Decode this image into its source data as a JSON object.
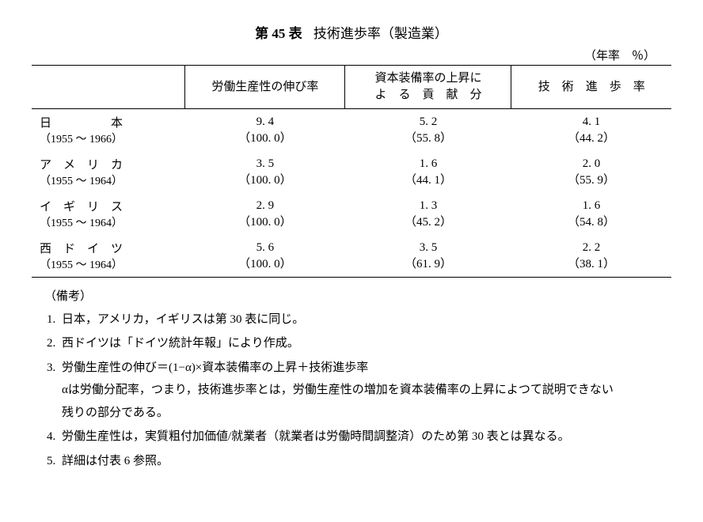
{
  "title": {
    "number": "第 45 表",
    "text": "技術進歩率（製造業）"
  },
  "unit": "（年率　％）",
  "headers": {
    "col1": "",
    "col2": "労働生産性の伸び率",
    "col3_l1": "資本装備率の上昇に",
    "col3_l2": "よ　る　貢　献　分",
    "col4": "技　術　進　歩　率"
  },
  "rows": [
    {
      "country": "日　　　　　本",
      "years": "（1955 〜 1966）",
      "v1": "9. 4",
      "p1": "（100. 0）",
      "v2": "5. 2",
      "p2": "（55. 8）",
      "v3": "4. 1",
      "p3": "（44. 2）"
    },
    {
      "country": "ア　メ　リ　カ",
      "years": "（1955 〜 1964）",
      "v1": "3. 5",
      "p1": "（100. 0）",
      "v2": "1. 6",
      "p2": "（44. 1）",
      "v3": "2. 0",
      "p3": "（55. 9）"
    },
    {
      "country": "イ　ギ　リ　ス",
      "years": "（1955 〜 1964）",
      "v1": "2. 9",
      "p1": "（100. 0）",
      "v2": "1. 3",
      "p2": "（45. 2）",
      "v3": "1. 6",
      "p3": "（54. 8）"
    },
    {
      "country": "西　ド　イ　ツ",
      "years": "（1955 〜 1964）",
      "v1": "5. 6",
      "p1": "（100. 0）",
      "v2": "3. 5",
      "p2": "（61. 9）",
      "v3": "2. 2",
      "p3": "（38. 1）"
    }
  ],
  "notes_label": "（備考）",
  "notes": [
    "日本，アメリカ，イギリスは第 30 表に同じ。",
    "西ドイツは「ドイツ統計年報」により作成。",
    "労働生産性の伸び＝(1−α)×資本装備率の上昇＋技術進歩率\nαは労働分配率，つまり，技術進歩率とは，労働生産性の増加を資本装備率の上昇によつて説明できない残りの部分である。",
    "労働生産性は，実質粗付加価値/就業者（就業者は労働時間調整済）のため第 30 表とは異なる。",
    "詳細は付表 6 参照。"
  ]
}
